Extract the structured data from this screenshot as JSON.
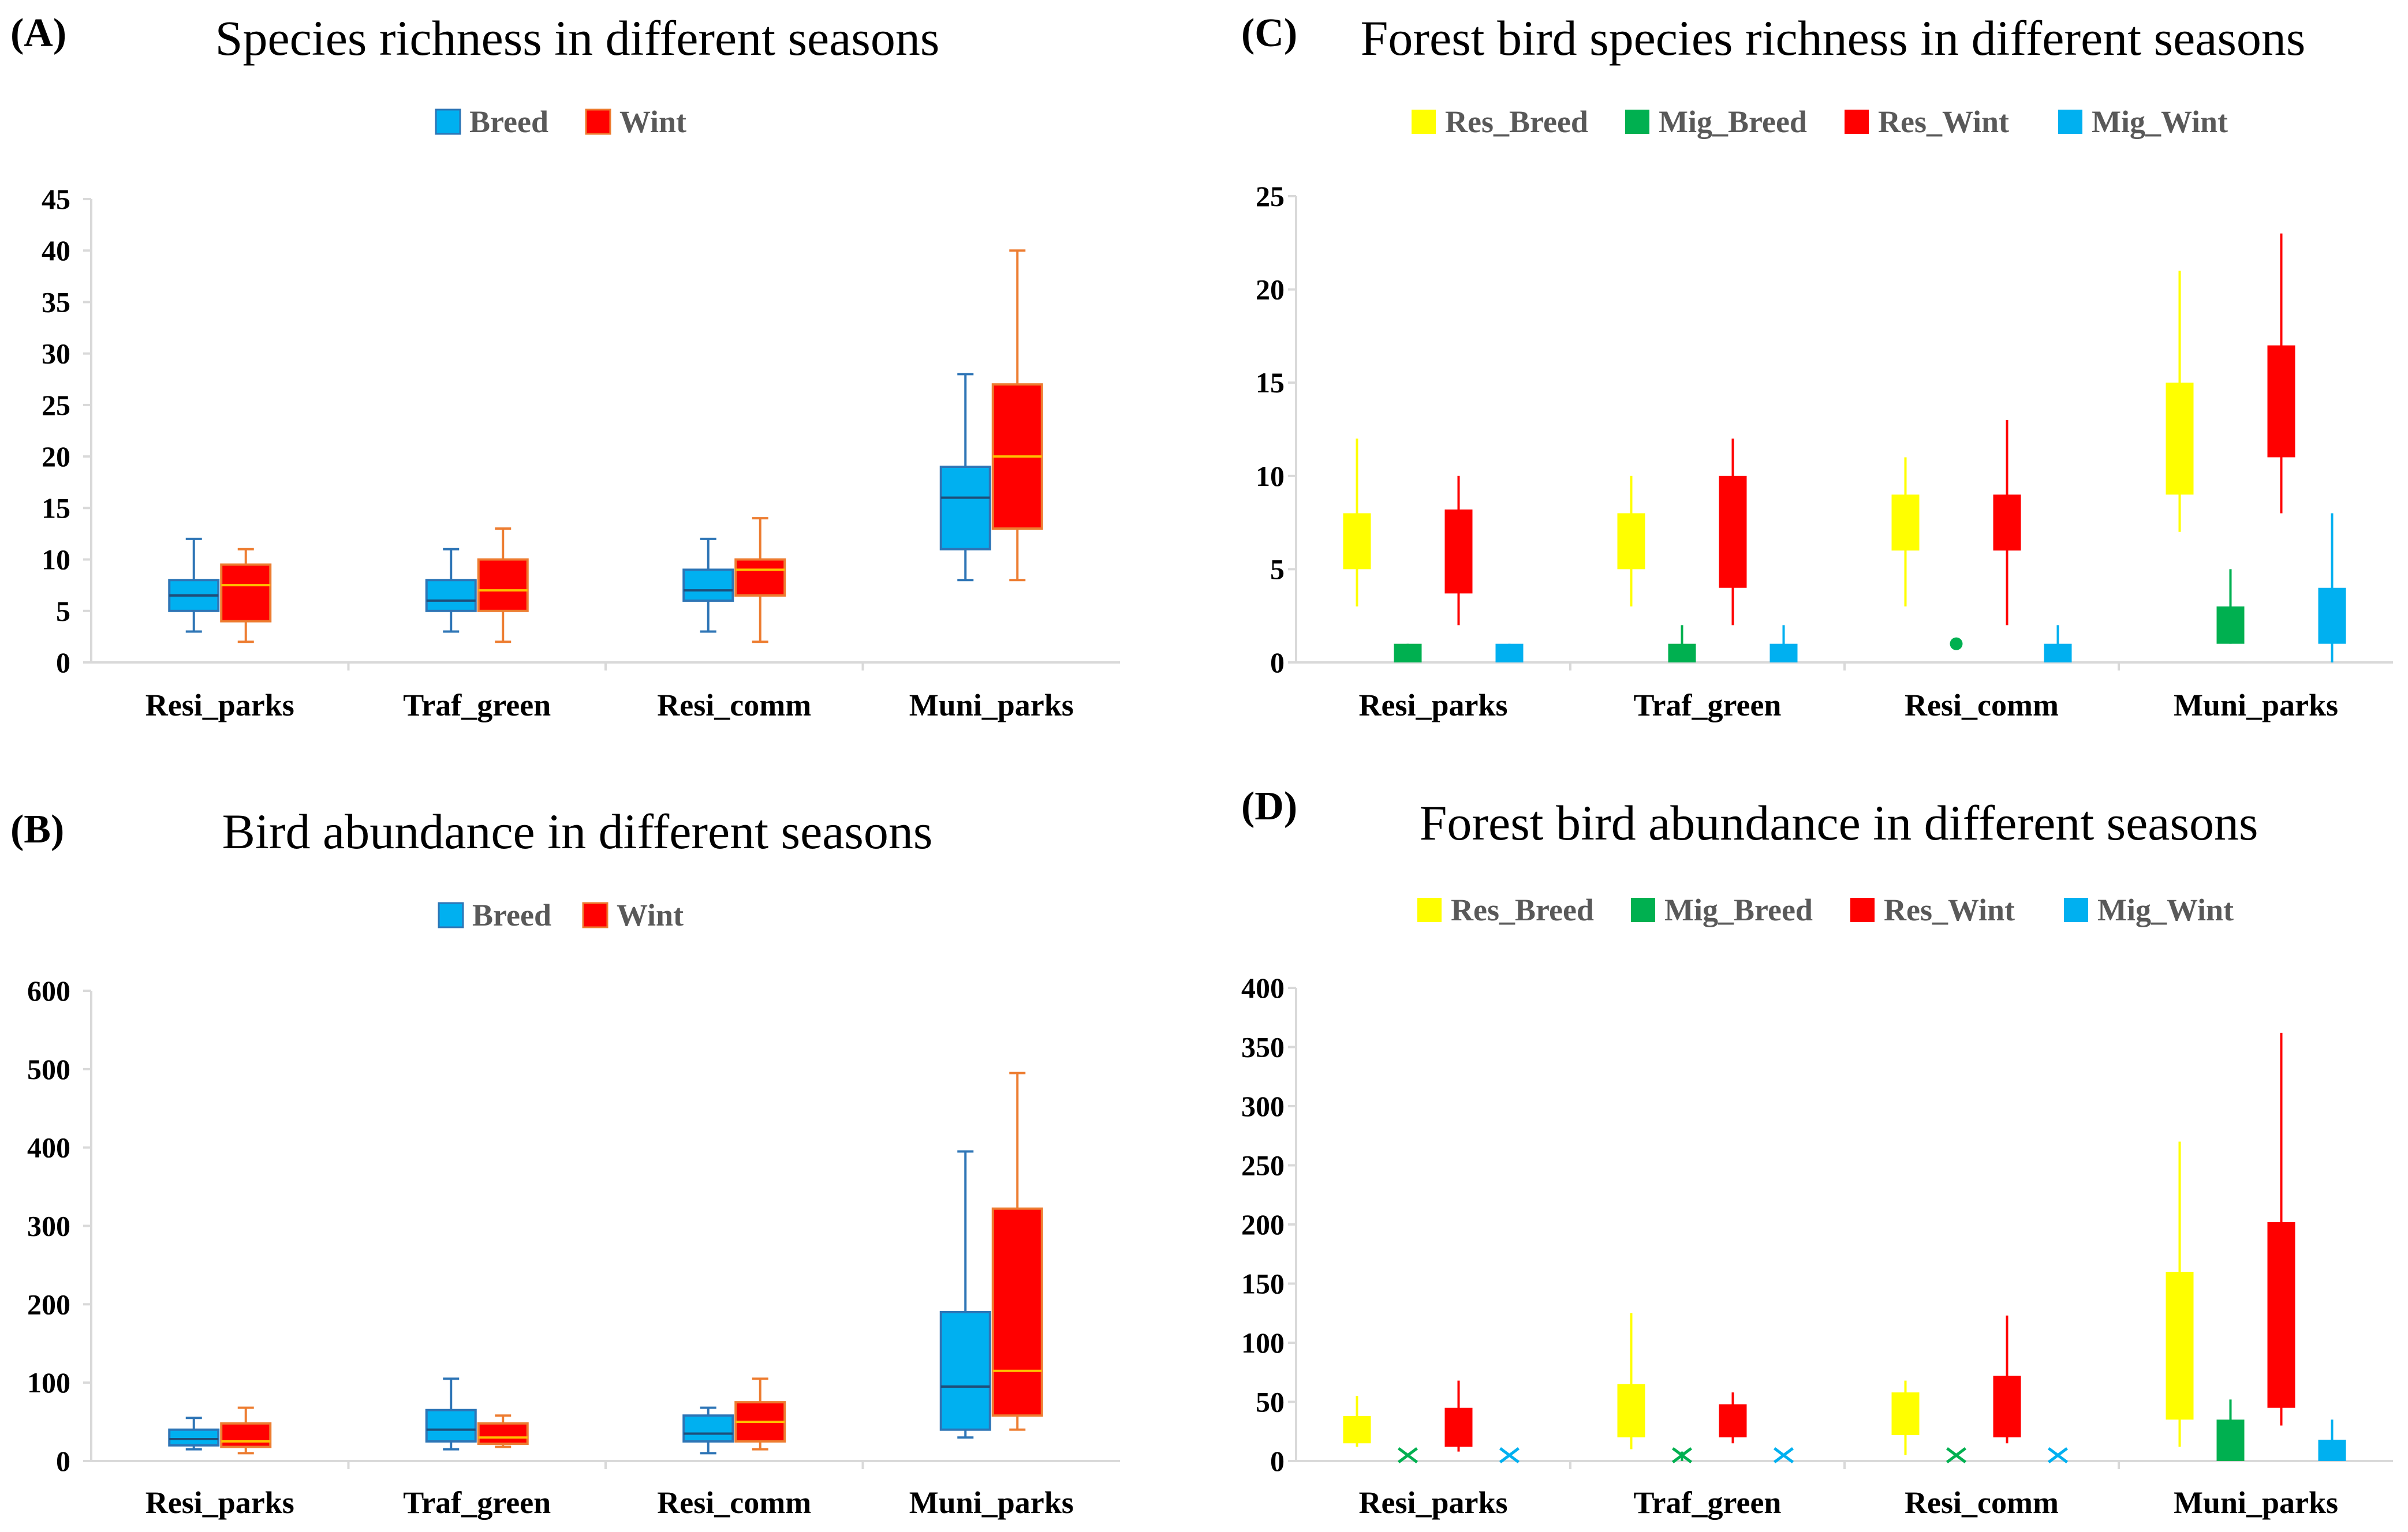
{
  "colors": {
    "breed": "#00b0f0",
    "wint": "#ff0000",
    "breed_line": "#2e75b6",
    "wint_line": "#ed7d31",
    "res_breed": "#ffff00",
    "mig_breed": "#00b050",
    "res_wint": "#ff0000",
    "mig_wint": "#00b0f0",
    "axis": "#d9d9d9"
  },
  "chart_data": [
    {
      "panel": "(A)",
      "type": "box",
      "title": "Species richness in different seasons",
      "categories": [
        "Resi_parks",
        "Traf_green",
        "Resi_comm",
        "Muni_parks"
      ],
      "ylim": [
        0,
        45
      ],
      "yticks": [
        0,
        5,
        10,
        15,
        20,
        25,
        30,
        35,
        40,
        45
      ],
      "legend_placement": "top-center",
      "series": [
        {
          "name": "Breed",
          "color": "#00b0f0",
          "line_color": "#2e75b6",
          "boxes": [
            {
              "min": 3,
              "q1": 5,
              "median": 6.5,
              "q3": 8,
              "max": 12
            },
            {
              "min": 3,
              "q1": 5,
              "median": 6,
              "q3": 8,
              "max": 11
            },
            {
              "min": 3,
              "q1": 6,
              "median": 7,
              "q3": 9,
              "max": 12
            },
            {
              "min": 8,
              "q1": 11,
              "median": 16,
              "q3": 19,
              "max": 28
            }
          ]
        },
        {
          "name": "Wint",
          "color": "#ff0000",
          "line_color": "#ed7d31",
          "boxes": [
            {
              "min": 2,
              "q1": 4,
              "median": 7.5,
              "q3": 9.5,
              "max": 11
            },
            {
              "min": 2,
              "q1": 5,
              "median": 7,
              "q3": 10,
              "max": 13
            },
            {
              "min": 2,
              "q1": 6.5,
              "median": 9,
              "q3": 10,
              "max": 14
            },
            {
              "min": 8,
              "q1": 13,
              "median": 20,
              "q3": 27,
              "max": 40
            }
          ]
        }
      ]
    },
    {
      "panel": "(B)",
      "type": "box",
      "title": "Bird abundance in different seasons",
      "categories": [
        "Resi_parks",
        "Traf_green",
        "Resi_comm",
        "Muni_parks"
      ],
      "ylim": [
        0,
        600
      ],
      "yticks": [
        0,
        100,
        200,
        300,
        400,
        500,
        600
      ],
      "legend_placement": "top-center",
      "series": [
        {
          "name": "Breed",
          "color": "#00b0f0",
          "line_color": "#2e75b6",
          "boxes": [
            {
              "min": 15,
              "q1": 20,
              "median": 28,
              "q3": 40,
              "max": 55
            },
            {
              "min": 15,
              "q1": 25,
              "median": 40,
              "q3": 65,
              "max": 105
            },
            {
              "min": 10,
              "q1": 25,
              "median": 35,
              "q3": 58,
              "max": 68
            },
            {
              "min": 30,
              "q1": 40,
              "median": 95,
              "q3": 190,
              "max": 395
            }
          ]
        },
        {
          "name": "Wint",
          "color": "#ff0000",
          "line_color": "#ed7d31",
          "boxes": [
            {
              "min": 10,
              "q1": 18,
              "median": 25,
              "q3": 48,
              "max": 68
            },
            {
              "min": 18,
              "q1": 22,
              "median": 30,
              "q3": 48,
              "max": 58
            },
            {
              "min": 15,
              "q1": 25,
              "median": 50,
              "q3": 75,
              "max": 105
            },
            {
              "min": 40,
              "q1": 58,
              "median": 115,
              "q3": 322,
              "max": 495
            }
          ]
        }
      ]
    },
    {
      "panel": "(C)",
      "type": "box",
      "title": "Forest bird species richness in different seasons",
      "categories": [
        "Resi_parks",
        "Traf_green",
        "Resi_comm",
        "Muni_parks"
      ],
      "ylim": [
        0,
        25
      ],
      "yticks": [
        0,
        5,
        10,
        15,
        20,
        25
      ],
      "legend_placement": "top-center",
      "series": [
        {
          "name": "Res_Breed",
          "color": "#ffff00",
          "line_color": "#ffff00",
          "boxes": [
            {
              "min": 3,
              "q1": 5,
              "median": 6,
              "q3": 8,
              "max": 12
            },
            {
              "min": 3,
              "q1": 5,
              "median": 6,
              "q3": 8,
              "max": 10
            },
            {
              "min": 3,
              "q1": 6,
              "median": 7,
              "q3": 9,
              "max": 11
            },
            {
              "min": 7,
              "q1": 9,
              "median": 12,
              "q3": 15,
              "max": 21
            }
          ]
        },
        {
          "name": "Mig_Breed",
          "color": "#00b050",
          "line_color": "#00b050",
          "boxes": [
            {
              "min": 0,
              "q1": 0,
              "median": 0,
              "q3": 1,
              "max": 1
            },
            {
              "min": 0,
              "q1": 0,
              "median": 0,
              "q3": 1,
              "max": 2
            },
            {
              "min": 1,
              "q1": 1,
              "median": 1,
              "q3": 1,
              "max": 1,
              "point": true
            },
            {
              "min": 1,
              "q1": 1,
              "median": 2,
              "q3": 3,
              "max": 5
            }
          ]
        },
        {
          "name": "Res_Wint",
          "color": "#ff0000",
          "line_color": "#ff0000",
          "boxes": [
            {
              "min": 2,
              "q1": 3.7,
              "median": 6,
              "q3": 8.2,
              "max": 10
            },
            {
              "min": 2,
              "q1": 4,
              "median": 7,
              "q3": 10,
              "max": 12
            },
            {
              "min": 2,
              "q1": 6,
              "median": 8,
              "q3": 9,
              "max": 13
            },
            {
              "min": 8,
              "q1": 11,
              "median": 14,
              "q3": 17,
              "max": 23
            }
          ]
        },
        {
          "name": "Mig_Wint",
          "color": "#00b0f0",
          "line_color": "#00b0f0",
          "boxes": [
            {
              "min": 0,
              "q1": 0,
              "median": 0,
              "q3": 1,
              "max": 1
            },
            {
              "min": 0,
              "q1": 0,
              "median": 0,
              "q3": 1,
              "max": 2
            },
            {
              "min": 0,
              "q1": 0,
              "median": 0,
              "q3": 1,
              "max": 2
            },
            {
              "min": 0,
              "q1": 1,
              "median": 2,
              "q3": 4,
              "max": 8
            }
          ]
        }
      ]
    },
    {
      "panel": "(D)",
      "type": "box",
      "title": "Forest bird abundance in different seasons",
      "categories": [
        "Resi_parks",
        "Traf_green",
        "Resi_comm",
        "Muni_parks"
      ],
      "ylim": [
        0,
        400
      ],
      "yticks": [
        0,
        50,
        100,
        150,
        200,
        250,
        300,
        350,
        400
      ],
      "legend_placement": "top-center",
      "series": [
        {
          "name": "Res_Breed",
          "color": "#ffff00",
          "line_color": "#ffff00",
          "boxes": [
            {
              "min": 12,
              "q1": 15,
              "median": 25,
              "q3": 38,
              "max": 55
            },
            {
              "min": 10,
              "q1": 20,
              "median": 40,
              "q3": 65,
              "max": 125
            },
            {
              "min": 5,
              "q1": 22,
              "median": 40,
              "q3": 58,
              "max": 68
            },
            {
              "min": 12,
              "q1": 35,
              "median": 100,
              "q3": 160,
              "max": 270
            }
          ]
        },
        {
          "name": "Mig_Breed",
          "color": "#00b050",
          "line_color": "#00b050",
          "boxes": [
            {
              "min": 0,
              "q1": 0,
              "median": 0,
              "q3": 0,
              "max": 0,
              "point": true
            },
            {
              "min": 0,
              "q1": 0,
              "median": 0,
              "q3": 0,
              "max": 8,
              "point": true
            },
            {
              "min": 0,
              "q1": 0,
              "median": 0,
              "q3": 0,
              "max": 0,
              "point": true
            },
            {
              "min": 0,
              "q1": 0,
              "median": 15,
              "q3": 35,
              "max": 52
            }
          ]
        },
        {
          "name": "Res_Wint",
          "color": "#ff0000",
          "line_color": "#ff0000",
          "boxes": [
            {
              "min": 8,
              "q1": 12,
              "median": 30,
              "q3": 45,
              "max": 68
            },
            {
              "min": 15,
              "q1": 20,
              "median": 35,
              "q3": 48,
              "max": 58
            },
            {
              "min": 15,
              "q1": 20,
              "median": 45,
              "q3": 72,
              "max": 123
            },
            {
              "min": 30,
              "q1": 45,
              "median": 120,
              "q3": 202,
              "max": 362
            }
          ]
        },
        {
          "name": "Mig_Wint",
          "color": "#00b0f0",
          "line_color": "#00b0f0",
          "boxes": [
            {
              "min": 0,
              "q1": 0,
              "median": 0,
              "q3": 0,
              "max": 0,
              "point": true
            },
            {
              "min": 0,
              "q1": 0,
              "median": 0,
              "q3": 0,
              "max": 0,
              "point": true
            },
            {
              "min": 0,
              "q1": 0,
              "median": 0,
              "q3": 0,
              "max": 0,
              "point": true
            },
            {
              "min": 0,
              "q1": 0,
              "median": 8,
              "q3": 18,
              "max": 35
            }
          ]
        }
      ]
    }
  ]
}
